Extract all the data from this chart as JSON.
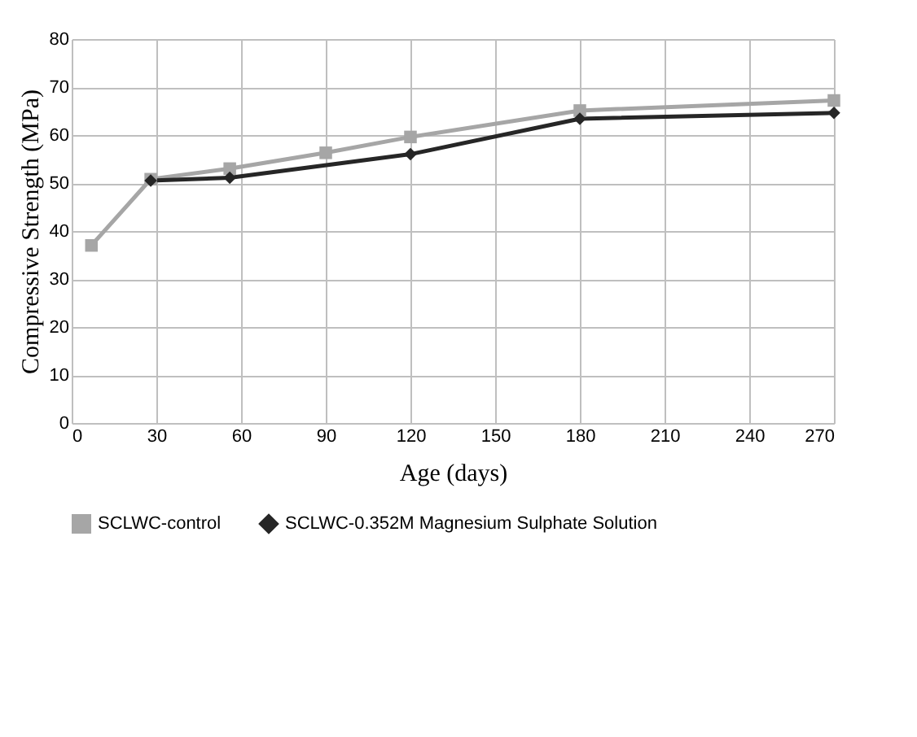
{
  "chart_data": {
    "type": "line",
    "xlabel": "Age (days)",
    "ylabel": "Compressive Strength (MPa)",
    "xlim": [
      0,
      270
    ],
    "xticks": [
      0,
      30,
      60,
      90,
      120,
      150,
      180,
      210,
      240,
      270
    ],
    "ylim": [
      0,
      80
    ],
    "yticks": [
      0,
      10,
      20,
      30,
      40,
      50,
      60,
      70,
      80
    ],
    "grid": true,
    "legend": "bottom",
    "series": [
      {
        "name": "SCLWC-control",
        "color": "#a6a6a6",
        "marker": "square",
        "x": [
          7,
          28,
          56,
          90,
          120,
          180,
          270
        ],
        "values": [
          37,
          50.8,
          53,
          56.3,
          59.6,
          65.1,
          67.2
        ]
      },
      {
        "name": "SCLWC-0.352M Magnesium Sulphate Solution",
        "color": "#262626",
        "marker": "diamond",
        "x": [
          28,
          56,
          120,
          180,
          270
        ],
        "values": [
          50.5,
          51.1,
          56,
          63.4,
          64.6
        ]
      }
    ]
  }
}
